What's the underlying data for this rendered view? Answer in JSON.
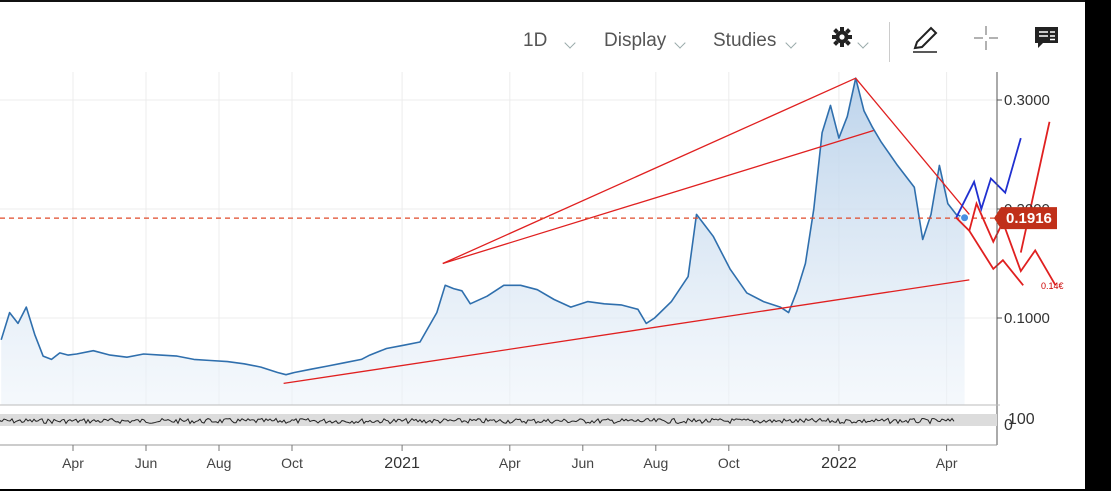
{
  "toolbar": {
    "interval_label": "1D",
    "display_label": "Display",
    "studies_label": "Studies",
    "icons": [
      "gear-icon",
      "pencil-icon",
      "crosshair-icon",
      "comment-icon"
    ]
  },
  "chart_data": {
    "type": "area",
    "title": "",
    "xlabel": "",
    "ylabel": "",
    "x_ticks": [
      "Apr",
      "Jun",
      "Aug",
      "Oct",
      "2021",
      "Apr",
      "Jun",
      "Aug",
      "Oct",
      "2022",
      "Apr"
    ],
    "y_ticks": [
      "0.1000",
      "0.2000",
      "0.3000"
    ],
    "ylim": [
      0.035,
      0.33
    ],
    "last_price": 0.1916,
    "last_price_label": "0.1916",
    "annotation_label": "0.14€",
    "lower_panel_labels": [
      "100",
      "0"
    ],
    "colors": {
      "line": "#2f6fad",
      "fill": "#c8dcee",
      "trend": "#e02020",
      "projection_blue": "#2030d0",
      "price_badge": "#c0301a"
    },
    "series": [
      {
        "x": [
          "2020-02-01",
          "2020-02-08",
          "2020-02-15",
          "2020-02-22",
          "2020-02-29",
          "2020-03-07",
          "2020-03-14",
          "2020-03-21",
          "2020-03-28",
          "2020-04-04",
          "2020-04-18",
          "2020-05-02",
          "2020-05-16",
          "2020-05-30",
          "2020-06-13",
          "2020-06-27",
          "2020-07-11",
          "2020-07-25",
          "2020-08-08",
          "2020-08-22",
          "2020-09-05",
          "2020-09-19",
          "2020-09-26",
          "2020-10-03",
          "2020-10-17",
          "2020-10-31",
          "2020-11-14",
          "2020-11-28",
          "2020-12-05",
          "2020-12-19",
          "2021-01-02",
          "2021-01-16",
          "2021-01-30",
          "2021-02-06",
          "2021-02-13",
          "2021-02-20",
          "2021-02-27",
          "2021-03-13",
          "2021-03-27",
          "2021-04-10",
          "2021-04-24",
          "2021-05-08",
          "2021-05-22",
          "2021-06-05",
          "2021-06-19",
          "2021-07-03",
          "2021-07-17",
          "2021-07-24",
          "2021-07-31",
          "2021-08-14",
          "2021-08-28",
          "2021-09-04",
          "2021-09-11",
          "2021-09-18",
          "2021-09-25",
          "2021-10-02",
          "2021-10-16",
          "2021-10-30",
          "2021-11-13",
          "2021-11-20",
          "2021-11-27",
          "2021-12-04",
          "2021-12-11",
          "2021-12-18",
          "2021-12-25",
          "2022-01-01",
          "2022-01-08",
          "2022-01-15",
          "2022-01-22",
          "2022-01-29",
          "2022-02-05",
          "2022-02-19",
          "2022-03-05",
          "2022-03-12",
          "2022-03-19",
          "2022-03-26",
          "2022-04-02",
          "2022-04-09",
          "2022-04-16"
        ],
        "values": [
          0.08,
          0.105,
          0.095,
          0.11,
          0.085,
          0.065,
          0.062,
          0.068,
          0.066,
          0.067,
          0.07,
          0.066,
          0.064,
          0.067,
          0.066,
          0.065,
          0.062,
          0.061,
          0.06,
          0.058,
          0.055,
          0.05,
          0.048,
          0.05,
          0.053,
          0.056,
          0.059,
          0.062,
          0.066,
          0.072,
          0.075,
          0.078,
          0.105,
          0.13,
          0.127,
          0.125,
          0.113,
          0.12,
          0.13,
          0.13,
          0.126,
          0.117,
          0.11,
          0.115,
          0.113,
          0.112,
          0.108,
          0.095,
          0.1,
          0.115,
          0.138,
          0.195,
          0.185,
          0.175,
          0.16,
          0.145,
          0.123,
          0.115,
          0.11,
          0.105,
          0.125,
          0.15,
          0.2,
          0.27,
          0.295,
          0.265,
          0.285,
          0.32,
          0.29,
          0.275,
          0.262,
          0.24,
          0.22,
          0.172,
          0.195,
          0.24,
          0.205,
          0.195,
          0.192
        ]
      }
    ],
    "trendlines": [
      {
        "from": [
          "2020-09-24",
          0.04
        ],
        "to": [
          "2022-04-20",
          0.135
        ]
      },
      {
        "from": [
          "2021-02-04",
          0.15
        ],
        "to": [
          "2022-01-15",
          0.32
        ]
      },
      {
        "from": [
          "2021-02-04",
          0.15
        ],
        "to": [
          "2022-01-30",
          0.272
        ]
      },
      {
        "from": [
          "2022-01-15",
          0.32
        ],
        "to": [
          "2022-04-20",
          0.195
        ]
      }
    ],
    "projections": [
      {
        "color": "blue",
        "points": [
          [
            "2022-04-09",
            0.192
          ],
          [
            "2022-04-24",
            0.225
          ],
          [
            "2022-04-30",
            0.2
          ],
          [
            "2022-05-08",
            0.228
          ],
          [
            "2022-05-20",
            0.215
          ],
          [
            "2022-06-02",
            0.265
          ]
        ]
      },
      {
        "color": "red",
        "points": [
          [
            "2022-04-09",
            0.192
          ],
          [
            "2022-04-20",
            0.18
          ],
          [
            "2022-04-26",
            0.205
          ],
          [
            "2022-05-10",
            0.17
          ],
          [
            "2022-05-18",
            0.188
          ],
          [
            "2022-06-02",
            0.143
          ],
          [
            "2022-06-14",
            0.162
          ],
          [
            "2022-07-01",
            0.13
          ]
        ]
      },
      {
        "color": "red",
        "points": [
          [
            "2022-04-20",
            0.18
          ],
          [
            "2022-05-10",
            0.145
          ],
          [
            "2022-05-18",
            0.153
          ],
          [
            "2022-06-04",
            0.13
          ]
        ]
      },
      {
        "color": "red",
        "points": [
          [
            "2022-06-02",
            0.16
          ],
          [
            "2022-06-26",
            0.28
          ]
        ]
      }
    ],
    "grid": true,
    "legend": "none"
  }
}
